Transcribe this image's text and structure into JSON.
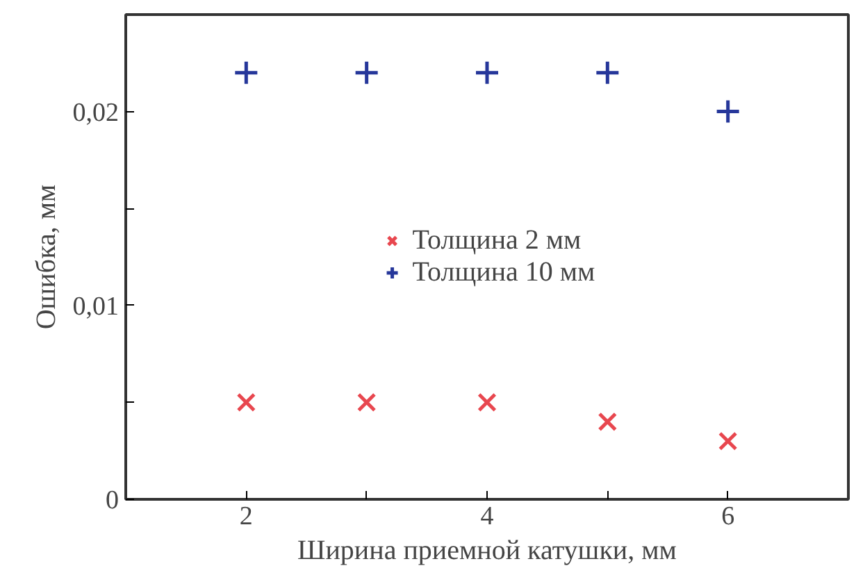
{
  "chart_data": {
    "type": "scatter",
    "xlabel": "Ширина приемной катушки, мм",
    "ylabel": "Ошибка, мм",
    "x": [
      2,
      3,
      4,
      5,
      6
    ],
    "series": [
      {
        "name": "Толщина 2 мм",
        "color": "#e8474f",
        "marker": "x",
        "values": [
          0.005,
          0.005,
          0.005,
          0.004,
          0.003
        ]
      },
      {
        "name": "Толщина 10 мм",
        "color": "#26379a",
        "marker": "cross",
        "values": [
          0.022,
          0.022,
          0.022,
          0.022,
          0.02
        ]
      }
    ],
    "xlim": [
      1,
      7
    ],
    "xticks": [
      2,
      {
        "value": 3,
        "label": null
      },
      4,
      {
        "value": 5,
        "label": null
      },
      6
    ],
    "ylim": [
      0,
      0.025
    ],
    "yticks": [
      0,
      {
        "value": 0.005,
        "label": null
      },
      {
        "value": 0.01,
        "label": "0,01"
      },
      {
        "value": 0.015,
        "label": null
      },
      {
        "value": 0.02,
        "label": "0,02"
      }
    ],
    "grid": false,
    "legend": "center"
  }
}
